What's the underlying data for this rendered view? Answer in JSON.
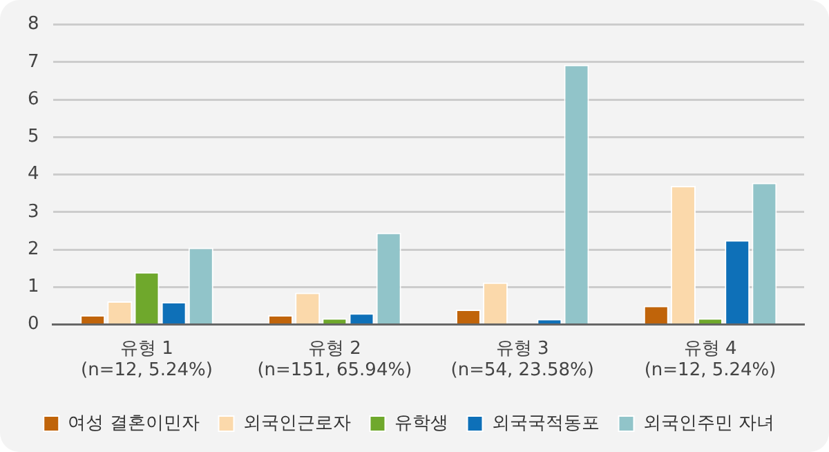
{
  "chart_data": {
    "type": "bar",
    "categories": [
      "유형 1\n(n=12, 5.24%)",
      "유형 2\n(n=151, 65.94%)",
      "유형 3\n(n=54, 23.58%)",
      "유형 4\n(n=12, 5.24%)"
    ],
    "series": [
      {
        "name": "여성 결혼이민자",
        "color": "#c0640a",
        "values": [
          0.25,
          0.25,
          0.4,
          0.5
        ]
      },
      {
        "name": "외국인근로자",
        "color": "#fbd9ab",
        "values": [
          0.62,
          0.85,
          1.12,
          3.7
        ]
      },
      {
        "name": "유학생",
        "color": "#6fa82c",
        "values": [
          1.4,
          0.17,
          0,
          0.17
        ]
      },
      {
        "name": "외국국적동포",
        "color": "#0e70b8",
        "values": [
          0.6,
          0.3,
          0.15,
          2.25
        ]
      },
      {
        "name": "외국인주민 자녀",
        "color": "#91c4c9",
        "values": [
          2.05,
          2.45,
          6.93,
          3.78
        ]
      }
    ],
    "ylim": [
      0,
      8
    ],
    "yticks": [
      0,
      1,
      2,
      3,
      4,
      5,
      6,
      7,
      8
    ],
    "grid": "y",
    "legend": "bottom"
  }
}
